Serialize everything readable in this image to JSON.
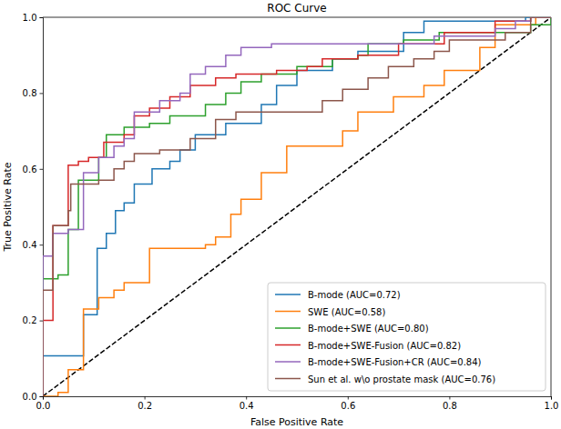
{
  "chart_data": {
    "type": "line",
    "title": "ROC Curve",
    "x_label": "False Positive Rate",
    "y_label": "True Positive Rate",
    "xlim": [
      0,
      1
    ],
    "ylim": [
      0,
      1
    ],
    "xticks": [
      {
        "value": 0,
        "label": "0.0"
      },
      {
        "value": 0.2,
        "label": "0.2"
      },
      {
        "value": 0.4,
        "label": "0.4"
      },
      {
        "value": 0.6,
        "label": "0.6"
      },
      {
        "value": 0.8,
        "label": "0.8"
      },
      {
        "value": 1,
        "label": "1.0"
      }
    ],
    "yticks": [
      {
        "value": 0,
        "label": "0.0"
      },
      {
        "value": 0.2,
        "label": "0.2"
      },
      {
        "value": 0.4,
        "label": "0.4"
      },
      {
        "value": 0.6,
        "label": "0.6"
      },
      {
        "value": 0.8,
        "label": "0.8"
      },
      {
        "value": 1,
        "label": "1.0"
      }
    ],
    "grid": false,
    "legend": "lower right",
    "series": [
      {
        "name": "B-mode (AUC=0.72)",
        "color": "#1f77b4",
        "x": [
          0,
          0,
          0.08,
          0.08,
          0.107,
          0.107,
          0.125,
          0.125,
          0.143,
          0.143,
          0.16,
          0.16,
          0.18,
          0.18,
          0.215,
          0.215,
          0.25,
          0.25,
          0.27,
          0.27,
          0.3,
          0.3,
          0.36,
          0.36,
          0.43,
          0.43,
          0.46,
          0.46,
          0.5,
          0.5,
          0.57,
          0.57,
          0.62,
          0.62,
          0.71,
          0.71,
          0.75,
          0.75,
          0.95,
          0.95,
          1
        ],
        "values": [
          0,
          0.107,
          0.107,
          0.215,
          0.215,
          0.39,
          0.39,
          0.43,
          0.43,
          0.49,
          0.49,
          0.51,
          0.51,
          0.56,
          0.56,
          0.6,
          0.6,
          0.62,
          0.62,
          0.65,
          0.65,
          0.69,
          0.69,
          0.72,
          0.72,
          0.77,
          0.77,
          0.82,
          0.82,
          0.86,
          0.86,
          0.89,
          0.89,
          0.91,
          0.91,
          0.96,
          0.96,
          0.99,
          0.99,
          1,
          1
        ]
      },
      {
        "name": "SWE (AUC=0.58)",
        "color": "#ff7f0e",
        "x": [
          0,
          0.03,
          0.03,
          0.05,
          0.05,
          0.08,
          0.08,
          0.11,
          0.11,
          0.14,
          0.14,
          0.16,
          0.16,
          0.21,
          0.21,
          0.32,
          0.32,
          0.34,
          0.34,
          0.37,
          0.37,
          0.39,
          0.39,
          0.43,
          0.43,
          0.48,
          0.48,
          0.59,
          0.59,
          0.62,
          0.62,
          0.69,
          0.69,
          0.75,
          0.75,
          0.79,
          0.79,
          0.86,
          0.86,
          0.89,
          0.89,
          0.97,
          0.97,
          1
        ],
        "values": [
          0,
          0,
          0.01,
          0.01,
          0.07,
          0.07,
          0.23,
          0.23,
          0.26,
          0.26,
          0.28,
          0.28,
          0.3,
          0.3,
          0.39,
          0.39,
          0.4,
          0.4,
          0.42,
          0.42,
          0.48,
          0.48,
          0.52,
          0.52,
          0.59,
          0.59,
          0.66,
          0.66,
          0.7,
          0.7,
          0.75,
          0.75,
          0.79,
          0.79,
          0.82,
          0.82,
          0.86,
          0.86,
          0.92,
          0.92,
          0.98,
          0.98,
          1,
          1
        ]
      },
      {
        "name": "B-mode+SWE (AUC=0.80)",
        "color": "#2ca02c",
        "x": [
          0,
          0,
          0.03,
          0.03,
          0.05,
          0.05,
          0.07,
          0.07,
          0.11,
          0.11,
          0.125,
          0.125,
          0.16,
          0.16,
          0.21,
          0.21,
          0.25,
          0.25,
          0.32,
          0.32,
          0.36,
          0.36,
          0.39,
          0.39,
          0.43,
          0.43,
          0.5,
          0.5,
          0.57,
          0.57,
          0.62,
          0.62,
          0.64,
          0.64,
          0.71,
          0.71,
          0.78,
          0.78,
          0.96,
          0.96,
          1,
          1
        ],
        "values": [
          0,
          0.31,
          0.31,
          0.32,
          0.32,
          0.44,
          0.44,
          0.57,
          0.57,
          0.63,
          0.63,
          0.69,
          0.69,
          0.71,
          0.71,
          0.72,
          0.72,
          0.74,
          0.74,
          0.77,
          0.77,
          0.8,
          0.8,
          0.83,
          0.83,
          0.85,
          0.85,
          0.87,
          0.87,
          0.89,
          0.89,
          0.9,
          0.9,
          0.93,
          0.93,
          0.94,
          0.94,
          0.96,
          0.96,
          0.98,
          0.98,
          1
        ]
      },
      {
        "name": "B-mode+SWE-Fusion (AUC=0.82)",
        "color": "#d62728",
        "x": [
          0,
          0,
          0.02,
          0.02,
          0.05,
          0.05,
          0.07,
          0.07,
          0.09,
          0.09,
          0.12,
          0.12,
          0.16,
          0.16,
          0.18,
          0.18,
          0.21,
          0.21,
          0.25,
          0.25,
          0.29,
          0.29,
          0.34,
          0.34,
          0.38,
          0.38,
          0.46,
          0.46,
          0.52,
          0.52,
          0.55,
          0.55,
          0.62,
          0.62,
          0.7,
          0.7,
          0.79,
          0.79,
          0.89,
          0.89,
          0.96,
          0.96,
          1
        ],
        "values": [
          0,
          0.2,
          0.2,
          0.45,
          0.45,
          0.61,
          0.61,
          0.62,
          0.62,
          0.63,
          0.63,
          0.67,
          0.67,
          0.69,
          0.69,
          0.74,
          0.74,
          0.76,
          0.76,
          0.79,
          0.79,
          0.82,
          0.82,
          0.84,
          0.84,
          0.85,
          0.85,
          0.86,
          0.86,
          0.87,
          0.87,
          0.89,
          0.89,
          0.9,
          0.9,
          0.93,
          0.93,
          0.96,
          0.96,
          0.99,
          0.99,
          1,
          1
        ]
      },
      {
        "name": "B-mode+SWE-Fusion+CR (AUC=0.84)",
        "color": "#9467bd",
        "x": [
          0,
          0,
          0.02,
          0.02,
          0.05,
          0.05,
          0.08,
          0.08,
          0.11,
          0.11,
          0.14,
          0.14,
          0.16,
          0.16,
          0.18,
          0.18,
          0.23,
          0.23,
          0.27,
          0.27,
          0.29,
          0.29,
          0.32,
          0.32,
          0.36,
          0.36,
          0.39,
          0.39,
          0.45,
          0.45,
          0.77,
          0.77,
          0.89,
          0.89,
          0.93,
          0.93,
          0.96,
          0.96,
          1
        ],
        "values": [
          0,
          0.37,
          0.37,
          0.43,
          0.43,
          0.44,
          0.44,
          0.59,
          0.59,
          0.63,
          0.63,
          0.66,
          0.66,
          0.68,
          0.68,
          0.75,
          0.75,
          0.78,
          0.78,
          0.8,
          0.8,
          0.85,
          0.85,
          0.87,
          0.87,
          0.9,
          0.9,
          0.92,
          0.92,
          0.93,
          0.93,
          0.95,
          0.95,
          0.97,
          0.97,
          0.99,
          0.99,
          1,
          1
        ]
      },
      {
        "name": "Sun et al. w\\o prostate mask (AUC=0.76)",
        "color": "#8c564b",
        "x": [
          0,
          0,
          0.02,
          0.02,
          0.05,
          0.05,
          0.055,
          0.055,
          0.11,
          0.11,
          0.14,
          0.14,
          0.16,
          0.16,
          0.18,
          0.18,
          0.23,
          0.23,
          0.29,
          0.29,
          0.34,
          0.34,
          0.38,
          0.38,
          0.55,
          0.55,
          0.59,
          0.59,
          0.64,
          0.64,
          0.68,
          0.68,
          0.73,
          0.73,
          0.77,
          0.77,
          0.8,
          0.8,
          0.91,
          0.91,
          0.96,
          0.96,
          1
        ],
        "values": [
          0,
          0.28,
          0.28,
          0.45,
          0.45,
          0.49,
          0.49,
          0.56,
          0.56,
          0.57,
          0.57,
          0.6,
          0.6,
          0.62,
          0.62,
          0.64,
          0.64,
          0.65,
          0.65,
          0.68,
          0.68,
          0.73,
          0.73,
          0.75,
          0.75,
          0.78,
          0.78,
          0.81,
          0.81,
          0.84,
          0.84,
          0.87,
          0.87,
          0.89,
          0.89,
          0.91,
          0.91,
          0.94,
          0.94,
          0.96,
          0.96,
          1,
          1
        ]
      },
      {
        "color": "#000000",
        "line_style": "dashed",
        "x": [
          0,
          1
        ],
        "values": [
          0,
          1
        ]
      }
    ]
  }
}
